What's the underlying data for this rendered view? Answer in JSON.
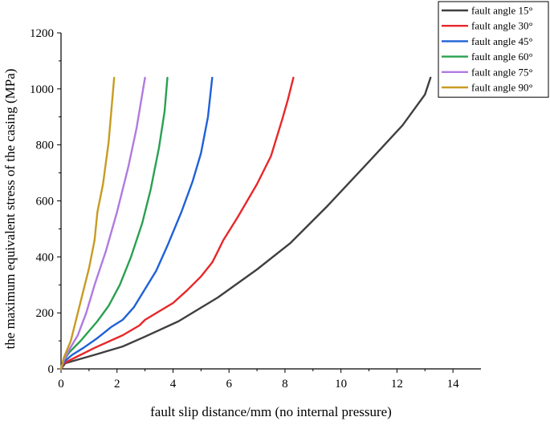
{
  "chart_data": {
    "type": "line",
    "xlabel": "fault slip distance/mm (no internal pressure)",
    "ylabel": "the maximum equivalent stress of the casing (MPa)",
    "xlim": [
      0,
      15
    ],
    "ylim": [
      0,
      1200
    ],
    "xticks": [
      0,
      2,
      4,
      6,
      8,
      10,
      12,
      14
    ],
    "yticks": [
      0,
      200,
      400,
      600,
      800,
      1000,
      1200
    ],
    "grid": false,
    "legend_position": "top-right",
    "series": [
      {
        "name": "fault angle 15°",
        "color": "#3f3f3f",
        "points": [
          [
            0,
            0
          ],
          [
            0.15,
            20
          ],
          [
            0.5,
            30
          ],
          [
            1.2,
            50
          ],
          [
            2.2,
            80
          ],
          [
            3,
            115
          ],
          [
            4.2,
            170
          ],
          [
            5.6,
            255
          ],
          [
            7,
            355
          ],
          [
            8.2,
            450
          ],
          [
            9.5,
            580
          ],
          [
            11,
            740
          ],
          [
            12.2,
            870
          ],
          [
            13,
            980
          ],
          [
            13.2,
            1040
          ]
        ]
      },
      {
        "name": "fault angle 30°",
        "color": "#e8272a",
        "points": [
          [
            0,
            0
          ],
          [
            0.1,
            20
          ],
          [
            0.5,
            40
          ],
          [
            1.2,
            75
          ],
          [
            2.2,
            120
          ],
          [
            2.8,
            155
          ],
          [
            3,
            175
          ],
          [
            3.5,
            205
          ],
          [
            4,
            235
          ],
          [
            4.5,
            280
          ],
          [
            5,
            330
          ],
          [
            5.4,
            380
          ],
          [
            5.6,
            420
          ],
          [
            5.8,
            460
          ],
          [
            6.3,
            540
          ],
          [
            7,
            660
          ],
          [
            7.5,
            760
          ],
          [
            7.9,
            890
          ],
          [
            8.1,
            960
          ],
          [
            8.3,
            1040
          ]
        ]
      },
      {
        "name": "fault angle 45°",
        "color": "#1f61d8",
        "points": [
          [
            0,
            0
          ],
          [
            0.1,
            25
          ],
          [
            0.4,
            50
          ],
          [
            0.8,
            75
          ],
          [
            1.3,
            110
          ],
          [
            1.8,
            150
          ],
          [
            2.2,
            175
          ],
          [
            2.6,
            220
          ],
          [
            3,
            285
          ],
          [
            3.4,
            350
          ],
          [
            3.8,
            440
          ],
          [
            4.3,
            560
          ],
          [
            4.7,
            670
          ],
          [
            5,
            770
          ],
          [
            5.25,
            900
          ],
          [
            5.4,
            1040
          ]
        ]
      },
      {
        "name": "fault angle 60°",
        "color": "#2aa050",
        "points": [
          [
            0,
            0
          ],
          [
            0.1,
            30
          ],
          [
            0.3,
            60
          ],
          [
            0.7,
            100
          ],
          [
            1.3,
            170
          ],
          [
            1.7,
            225
          ],
          [
            2.1,
            300
          ],
          [
            2.5,
            400
          ],
          [
            2.9,
            520
          ],
          [
            3.2,
            640
          ],
          [
            3.5,
            790
          ],
          [
            3.7,
            920
          ],
          [
            3.8,
            1040
          ]
        ]
      },
      {
        "name": "fault angle 75°",
        "color": "#b07ae0",
        "points": [
          [
            0,
            0
          ],
          [
            0.1,
            30
          ],
          [
            0.3,
            70
          ],
          [
            0.6,
            120
          ],
          [
            0.9,
            200
          ],
          [
            1.2,
            300
          ],
          [
            1.6,
            420
          ],
          [
            2,
            560
          ],
          [
            2.4,
            720
          ],
          [
            2.7,
            860
          ],
          [
            3,
            1040
          ]
        ]
      },
      {
        "name": "fault angle 90°",
        "color": "#c89b22",
        "points": [
          [
            0,
            0
          ],
          [
            0.1,
            40
          ],
          [
            0.35,
            100
          ],
          [
            0.7,
            240
          ],
          [
            1,
            360
          ],
          [
            1.2,
            460
          ],
          [
            1.3,
            560
          ],
          [
            1.5,
            660
          ],
          [
            1.7,
            810
          ],
          [
            1.9,
            1040
          ]
        ]
      }
    ]
  }
}
